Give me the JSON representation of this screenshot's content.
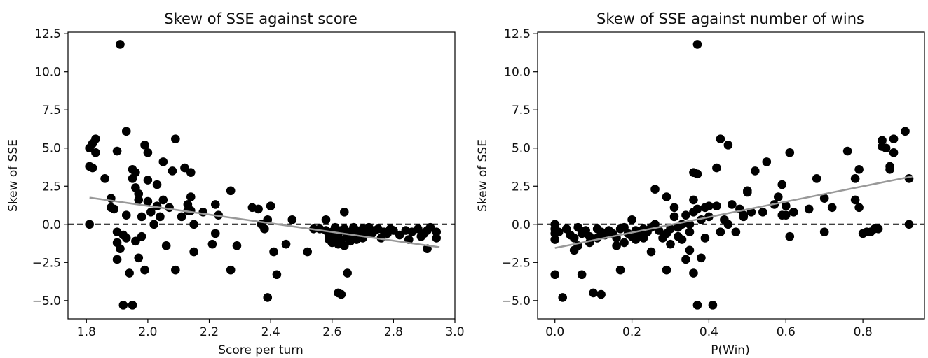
{
  "chart_data": [
    {
      "type": "scatter",
      "title": "Skew of SSE against score",
      "xlabel": "Score per turn",
      "ylabel": "Skew of SSE",
      "xlim": [
        1.74,
        3.0
      ],
      "ylim": [
        -6.2,
        12.6
      ],
      "xticks": [
        1.8,
        2.0,
        2.2,
        2.4,
        2.6,
        2.8,
        3.0
      ],
      "xtick_labels": [
        "1.8",
        "2.0",
        "2.2",
        "2.4",
        "2.6",
        "2.8",
        "3.0"
      ],
      "yticks": [
        -5.0,
        -2.5,
        0.0,
        2.5,
        5.0,
        7.5,
        10.0,
        12.5
      ],
      "ytick_labels": [
        "−5.0",
        "−2.5",
        "0.0",
        "2.5",
        "5.0",
        "7.5",
        "10.0",
        "12.5"
      ],
      "marker_color": "#000000",
      "zero_line": {
        "y": 0,
        "style": "dashed",
        "color": "#000000"
      },
      "trend_line": {
        "x": [
          1.81,
          2.95
        ],
        "y": [
          1.75,
          -1.5
        ],
        "color": "#999999"
      },
      "points": [
        [
          1.81,
          3.8
        ],
        [
          1.81,
          5.0
        ],
        [
          1.82,
          5.3
        ],
        [
          1.82,
          3.7
        ],
        [
          1.83,
          4.7
        ],
        [
          1.83,
          5.6
        ],
        [
          1.81,
          0.0
        ],
        [
          1.91,
          11.8
        ],
        [
          1.93,
          6.1
        ],
        [
          1.9,
          4.8
        ],
        [
          1.86,
          3.0
        ],
        [
          1.88,
          1.7
        ],
        [
          1.88,
          1.1
        ],
        [
          1.89,
          1.0
        ],
        [
          1.9,
          -0.5
        ],
        [
          1.9,
          -1.2
        ],
        [
          1.91,
          -1.6
        ],
        [
          1.9,
          -2.3
        ],
        [
          1.92,
          -0.7
        ],
        [
          1.93,
          0.6
        ],
        [
          1.93,
          -0.9
        ],
        [
          1.94,
          -3.2
        ],
        [
          1.92,
          -5.3
        ],
        [
          1.95,
          -5.3
        ],
        [
          1.95,
          3.6
        ],
        [
          1.95,
          3.0
        ],
        [
          1.96,
          3.4
        ],
        [
          1.96,
          2.4
        ],
        [
          1.97,
          1.6
        ],
        [
          1.97,
          2.0
        ],
        [
          1.98,
          0.5
        ],
        [
          1.96,
          -1.1
        ],
        [
          1.97,
          -2.2
        ],
        [
          1.99,
          -3.0
        ],
        [
          1.98,
          -0.8
        ],
        [
          1.99,
          5.2
        ],
        [
          2.0,
          4.7
        ],
        [
          2.0,
          2.9
        ],
        [
          2.0,
          1.5
        ],
        [
          2.01,
          0.8
        ],
        [
          2.02,
          0.0
        ],
        [
          2.03,
          2.6
        ],
        [
          2.03,
          1.2
        ],
        [
          2.04,
          0.5
        ],
        [
          2.05,
          1.6
        ],
        [
          2.05,
          4.1
        ],
        [
          2.06,
          -1.4
        ],
        [
          2.07,
          1.1
        ],
        [
          2.08,
          3.5
        ],
        [
          2.09,
          5.6
        ],
        [
          2.09,
          -3.0
        ],
        [
          2.11,
          0.5
        ],
        [
          2.12,
          3.7
        ],
        [
          2.13,
          0.9
        ],
        [
          2.13,
          1.3
        ],
        [
          2.14,
          3.4
        ],
        [
          2.14,
          1.8
        ],
        [
          2.14,
          0.9
        ],
        [
          2.15,
          0.0
        ],
        [
          2.15,
          -1.8
        ],
        [
          2.18,
          0.8
        ],
        [
          2.21,
          -1.3
        ],
        [
          2.22,
          1.3
        ],
        [
          2.22,
          -0.6
        ],
        [
          2.23,
          0.6
        ],
        [
          2.27,
          2.2
        ],
        [
          2.27,
          -3.0
        ],
        [
          2.29,
          -1.4
        ],
        [
          2.34,
          1.1
        ],
        [
          2.36,
          1.0
        ],
        [
          2.37,
          0.0
        ],
        [
          2.38,
          -0.3
        ],
        [
          2.39,
          0.3
        ],
        [
          2.39,
          -4.8
        ],
        [
          2.4,
          1.2
        ],
        [
          2.41,
          -1.8
        ],
        [
          2.42,
          -3.3
        ],
        [
          2.45,
          -1.3
        ],
        [
          2.47,
          0.3
        ],
        [
          2.52,
          -1.8
        ],
        [
          2.54,
          -0.3
        ],
        [
          2.56,
          -0.3
        ],
        [
          2.58,
          -0.4
        ],
        [
          2.58,
          0.3
        ],
        [
          2.59,
          -0.7
        ],
        [
          2.59,
          -1.0
        ],
        [
          2.6,
          -0.5
        ],
        [
          2.6,
          -1.2
        ],
        [
          2.61,
          -0.2
        ],
        [
          2.61,
          -0.9
        ],
        [
          2.62,
          -0.6
        ],
        [
          2.62,
          -1.3
        ],
        [
          2.62,
          -4.5
        ],
        [
          2.63,
          -4.6
        ],
        [
          2.63,
          -0.4
        ],
        [
          2.63,
          -1.0
        ],
        [
          2.64,
          0.8
        ],
        [
          2.64,
          -0.3
        ],
        [
          2.64,
          -1.4
        ],
        [
          2.65,
          -0.8
        ],
        [
          2.65,
          -3.2
        ],
        [
          2.66,
          -0.5
        ],
        [
          2.66,
          -1.1
        ],
        [
          2.67,
          -0.2
        ],
        [
          2.67,
          -0.7
        ],
        [
          2.68,
          -0.4
        ],
        [
          2.68,
          -1.0
        ],
        [
          2.69,
          -0.6
        ],
        [
          2.7,
          -0.3
        ],
        [
          2.7,
          -0.9
        ],
        [
          2.71,
          -0.5
        ],
        [
          2.72,
          -0.2
        ],
        [
          2.73,
          -0.6
        ],
        [
          2.74,
          -0.4
        ],
        [
          2.75,
          -0.3
        ],
        [
          2.76,
          -0.9
        ],
        [
          2.77,
          -0.5
        ],
        [
          2.78,
          -0.6
        ],
        [
          2.79,
          -0.3
        ],
        [
          2.8,
          -0.4
        ],
        [
          2.82,
          -0.7
        ],
        [
          2.84,
          -0.4
        ],
        [
          2.85,
          -1.0
        ],
        [
          2.86,
          -0.5
        ],
        [
          2.88,
          -0.3
        ],
        [
          2.89,
          -0.8
        ],
        [
          2.9,
          -0.6
        ],
        [
          2.91,
          -1.6
        ],
        [
          2.91,
          -0.4
        ],
        [
          2.92,
          -0.2
        ],
        [
          2.94,
          -0.5
        ],
        [
          2.94,
          -0.9
        ]
      ]
    },
    {
      "type": "scatter",
      "title": "Skew of SSE against number of wins",
      "xlabel": "P(Win)",
      "ylabel": "Skew of SSE",
      "xlim": [
        -0.045,
        0.96
      ],
      "ylim": [
        -6.2,
        12.6
      ],
      "xticks": [
        0.0,
        0.2,
        0.4,
        0.6,
        0.8
      ],
      "xtick_labels": [
        "0.0",
        "0.2",
        "0.4",
        "0.6",
        "0.8"
      ],
      "yticks": [
        -5.0,
        -2.5,
        0.0,
        2.5,
        5.0,
        7.5,
        10.0,
        12.5
      ],
      "ytick_labels": [
        "−5.0",
        "−2.5",
        "0.0",
        "2.5",
        "5.0",
        "7.5",
        "10.0",
        "12.5"
      ],
      "marker_color": "#000000",
      "zero_line": {
        "y": 0,
        "style": "dashed",
        "color": "#000000"
      },
      "trend_line": {
        "x": [
          0.0,
          0.93
        ],
        "y": [
          -1.55,
          3.15
        ],
        "color": "#999999"
      },
      "points": [
        [
          0.0,
          0.0
        ],
        [
          0.0,
          -0.3
        ],
        [
          0.0,
          -0.6
        ],
        [
          0.0,
          -1.0
        ],
        [
          0.0,
          -3.3
        ],
        [
          0.02,
          -4.8
        ],
        [
          0.01,
          -0.5
        ],
        [
          0.03,
          -0.3
        ],
        [
          0.04,
          -0.7
        ],
        [
          0.05,
          -0.9
        ],
        [
          0.05,
          -1.7
        ],
        [
          0.06,
          -0.2
        ],
        [
          0.06,
          -1.4
        ],
        [
          0.07,
          -0.6
        ],
        [
          0.07,
          -3.3
        ],
        [
          0.08,
          -0.4
        ],
        [
          0.09,
          -1.2
        ],
        [
          0.09,
          -0.8
        ],
        [
          0.1,
          -4.5
        ],
        [
          0.11,
          -0.3
        ],
        [
          0.11,
          -0.9
        ],
        [
          0.12,
          -4.6
        ],
        [
          0.12,
          -0.5
        ],
        [
          0.13,
          -0.7
        ],
        [
          0.14,
          -0.4
        ],
        [
          0.15,
          -0.6
        ],
        [
          0.16,
          -1.4
        ],
        [
          0.16,
          -0.9
        ],
        [
          0.17,
          -3.0
        ],
        [
          0.17,
          -0.3
        ],
        [
          0.18,
          -0.2
        ],
        [
          0.18,
          -1.2
        ],
        [
          0.19,
          -0.6
        ],
        [
          0.2,
          -0.8
        ],
        [
          0.2,
          0.3
        ],
        [
          0.21,
          -1.0
        ],
        [
          0.21,
          -0.4
        ],
        [
          0.22,
          -0.6
        ],
        [
          0.23,
          -0.9
        ],
        [
          0.23,
          -0.3
        ],
        [
          0.24,
          -0.5
        ],
        [
          0.25,
          -0.2
        ],
        [
          0.25,
          -1.8
        ],
        [
          0.26,
          2.3
        ],
        [
          0.26,
          0.0
        ],
        [
          0.27,
          -0.4
        ],
        [
          0.28,
          -0.9
        ],
        [
          0.29,
          1.8
        ],
        [
          0.29,
          -3.0
        ],
        [
          0.29,
          -0.6
        ],
        [
          0.3,
          -0.3
        ],
        [
          0.3,
          -1.3
        ],
        [
          0.31,
          1.1
        ],
        [
          0.31,
          0.5
        ],
        [
          0.32,
          -0.2
        ],
        [
          0.32,
          -0.8
        ],
        [
          0.33,
          0.0
        ],
        [
          0.33,
          -1.0
        ],
        [
          0.34,
          -2.3
        ],
        [
          0.34,
          0.6
        ],
        [
          0.35,
          0.0
        ],
        [
          0.35,
          -0.5
        ],
        [
          0.35,
          -1.7
        ],
        [
          0.36,
          3.4
        ],
        [
          0.36,
          1.6
        ],
        [
          0.36,
          -3.2
        ],
        [
          0.36,
          0.8
        ],
        [
          0.37,
          3.3
        ],
        [
          0.37,
          1.0
        ],
        [
          0.37,
          -5.3
        ],
        [
          0.37,
          11.8
        ],
        [
          0.38,
          -2.2
        ],
        [
          0.38,
          0.3
        ],
        [
          0.39,
          1.1
        ],
        [
          0.39,
          -0.9
        ],
        [
          0.4,
          1.2
        ],
        [
          0.4,
          0.5
        ],
        [
          0.41,
          -5.3
        ],
        [
          0.42,
          1.2
        ],
        [
          0.42,
          3.7
        ],
        [
          0.43,
          5.6
        ],
        [
          0.43,
          -0.5
        ],
        [
          0.44,
          0.3
        ],
        [
          0.45,
          5.2
        ],
        [
          0.45,
          0.0
        ],
        [
          0.46,
          1.3
        ],
        [
          0.47,
          -0.5
        ],
        [
          0.48,
          1.0
        ],
        [
          0.49,
          0.5
        ],
        [
          0.49,
          0.6
        ],
        [
          0.5,
          2.2
        ],
        [
          0.5,
          2.1
        ],
        [
          0.51,
          0.8
        ],
        [
          0.52,
          3.5
        ],
        [
          0.54,
          0.8
        ],
        [
          0.55,
          4.1
        ],
        [
          0.57,
          1.3
        ],
        [
          0.58,
          1.8
        ],
        [
          0.59,
          0.6
        ],
        [
          0.59,
          2.6
        ],
        [
          0.6,
          1.2
        ],
        [
          0.6,
          0.6
        ],
        [
          0.61,
          4.7
        ],
        [
          0.61,
          -0.8
        ],
        [
          0.62,
          0.8
        ],
        [
          0.66,
          1.0
        ],
        [
          0.68,
          3.0
        ],
        [
          0.7,
          1.7
        ],
        [
          0.7,
          -0.5
        ],
        [
          0.72,
          1.1
        ],
        [
          0.76,
          4.8
        ],
        [
          0.78,
          3.0
        ],
        [
          0.78,
          1.6
        ],
        [
          0.79,
          3.6
        ],
        [
          0.79,
          1.1
        ],
        [
          0.8,
          -0.6
        ],
        [
          0.81,
          -0.5
        ],
        [
          0.82,
          -0.5
        ],
        [
          0.83,
          -0.3
        ],
        [
          0.84,
          -0.3
        ],
        [
          0.85,
          5.5
        ],
        [
          0.85,
          5.1
        ],
        [
          0.86,
          5.0
        ],
        [
          0.87,
          3.6
        ],
        [
          0.87,
          3.8
        ],
        [
          0.88,
          4.7
        ],
        [
          0.88,
          5.6
        ],
        [
          0.91,
          6.1
        ],
        [
          0.92,
          3.0
        ],
        [
          0.92,
          0.0
        ]
      ]
    }
  ]
}
